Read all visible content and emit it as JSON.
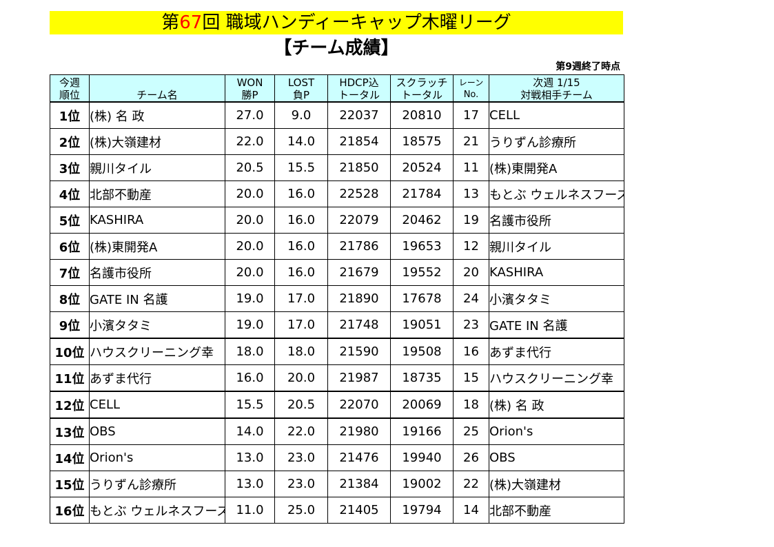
{
  "title": {
    "prefix": "第",
    "number": "67",
    "suffix": "回 職域ハンディーキャップ木曜リーグ"
  },
  "subtitle": "【チーム成績】",
  "week_note": "第9週終了時点",
  "headers": {
    "rank": [
      "今週",
      "順位"
    ],
    "team": "チーム名",
    "won": [
      "WON",
      "勝P"
    ],
    "lost": [
      "LOST",
      "負P"
    ],
    "hdcp": [
      "HDCP込",
      "トータル"
    ],
    "scratch": [
      "スクラッチ",
      "トータル"
    ],
    "lane": [
      "レーン",
      "No."
    ],
    "next": [
      "次週 1/15",
      "対戦相手チーム"
    ]
  },
  "rows": [
    {
      "rank": "1位",
      "team": "(株) 名 政",
      "won": "27.0",
      "lost": "9.0",
      "hdcp": "22037",
      "scratch": "20810",
      "lane": "17",
      "next": "CELL"
    },
    {
      "rank": "2位",
      "team": "(株)大嶺建材",
      "won": "22.0",
      "lost": "14.0",
      "hdcp": "21854",
      "scratch": "18575",
      "lane": "21",
      "next": "うりずん診療所"
    },
    {
      "rank": "3位",
      "team": "親川タイル",
      "won": "20.5",
      "lost": "15.5",
      "hdcp": "21850",
      "scratch": "20524",
      "lane": "11",
      "next": "(株)東開発A"
    },
    {
      "rank": "4位",
      "team": "北部不動産",
      "won": "20.0",
      "lost": "16.0",
      "hdcp": "22528",
      "scratch": "21784",
      "lane": "13",
      "next": "もとぶ ウェルネスフーズ"
    },
    {
      "rank": "5位",
      "team": "KASHIRA",
      "won": "20.0",
      "lost": "16.0",
      "hdcp": "22079",
      "scratch": "20462",
      "lane": "19",
      "next": "名護市役所"
    },
    {
      "rank": "6位",
      "team": "(株)東開発A",
      "won": "20.0",
      "lost": "16.0",
      "hdcp": "21786",
      "scratch": "19653",
      "lane": "12",
      "next": "親川タイル"
    },
    {
      "rank": "7位",
      "team": "名護市役所",
      "won": "20.0",
      "lost": "16.0",
      "hdcp": "21679",
      "scratch": "19552",
      "lane": "20",
      "next": "KASHIRA"
    },
    {
      "rank": "8位",
      "team": "GATE IN 名護",
      "won": "19.0",
      "lost": "17.0",
      "hdcp": "21890",
      "scratch": "17678",
      "lane": "24",
      "next": "小濱タタミ"
    },
    {
      "rank": "9位",
      "team": "小濱タタミ",
      "won": "19.0",
      "lost": "17.0",
      "hdcp": "21748",
      "scratch": "19051",
      "lane": "23",
      "next": "GATE IN 名護"
    },
    {
      "rank": "10位",
      "team": "ハウスクリーニング幸",
      "won": "18.0",
      "lost": "18.0",
      "hdcp": "21590",
      "scratch": "19508",
      "lane": "16",
      "next": "あずま代行"
    },
    {
      "rank": "11位",
      "team": "あずま代行",
      "won": "16.0",
      "lost": "20.0",
      "hdcp": "21987",
      "scratch": "18735",
      "lane": "15",
      "next": "ハウスクリーニング幸"
    },
    {
      "rank": "12位",
      "team": "CELL",
      "won": "15.5",
      "lost": "20.5",
      "hdcp": "22070",
      "scratch": "20069",
      "lane": "18",
      "next": "(株) 名 政"
    },
    {
      "rank": "13位",
      "team": "OBS",
      "won": "14.0",
      "lost": "22.0",
      "hdcp": "21980",
      "scratch": "19166",
      "lane": "25",
      "next": "Orion's"
    },
    {
      "rank": "14位",
      "team": "Orion's",
      "won": "13.0",
      "lost": "23.0",
      "hdcp": "21476",
      "scratch": "19940",
      "lane": "26",
      "next": "OBS"
    },
    {
      "rank": "15位",
      "team": "うりずん診療所",
      "won": "13.0",
      "lost": "23.0",
      "hdcp": "21384",
      "scratch": "19002",
      "lane": "22",
      "next": "(株)大嶺建材"
    },
    {
      "rank": "16位",
      "team": "もとぶ ウェルネスフーズ",
      "won": "11.0",
      "lost": "25.0",
      "hdcp": "21405",
      "scratch": "19794",
      "lane": "14",
      "next": "北部不動産"
    }
  ]
}
